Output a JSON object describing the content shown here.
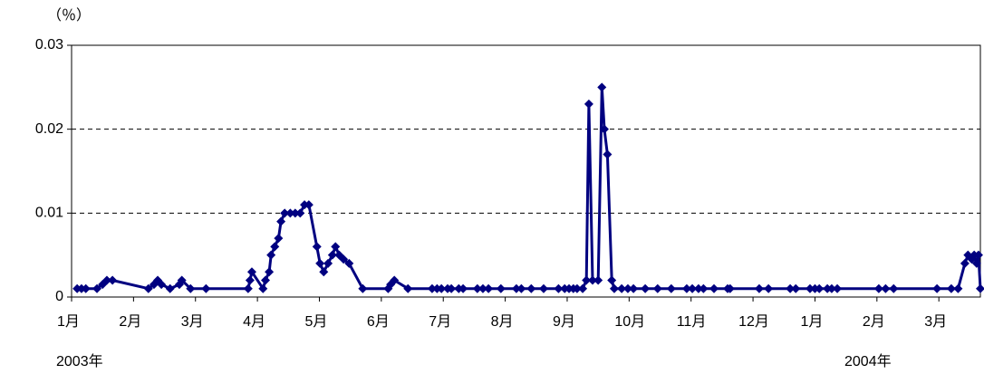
{
  "chart_data": {
    "type": "line",
    "y_label": "（％）",
    "annotations": [
      {
        "text": "2003年"
      },
      {
        "text": "2004年"
      }
    ],
    "x": [
      0.09,
      0.16,
      0.23,
      0.41,
      0.5,
      0.57,
      0.66,
      1.24,
      1.33,
      1.39,
      1.45,
      1.59,
      1.74,
      1.78,
      1.92,
      2.17,
      2.85,
      2.88,
      2.91,
      3.09,
      3.13,
      3.19,
      3.22,
      3.28,
      3.34,
      3.38,
      3.44,
      3.53,
      3.61,
      3.69,
      3.76,
      3.83,
      3.96,
      4.01,
      4.07,
      4.14,
      4.21,
      4.26,
      4.32,
      4.39,
      4.48,
      4.7,
      5.11,
      5.15,
      5.21,
      5.43,
      5.82,
      5.9,
      5.97,
      6.07,
      6.13,
      6.25,
      6.32,
      6.55,
      6.64,
      6.73,
      6.93,
      7.18,
      7.26,
      7.42,
      7.62,
      7.86,
      7.96,
      8.03,
      8.1,
      8.16,
      8.25,
      8.31,
      8.35,
      8.41,
      8.5,
      8.56,
      8.6,
      8.65,
      8.72,
      8.76,
      8.88,
      8.98,
      9.07,
      9.26,
      9.46,
      9.68,
      9.93,
      10.02,
      10.12,
      10.2,
      10.37,
      10.59,
      10.63,
      11.1,
      11.25,
      11.6,
      11.69,
      11.92,
      12.0,
      12.07,
      12.2,
      12.27,
      12.36,
      13.03,
      13.14,
      13.27,
      13.97,
      14.2,
      14.31,
      14.42,
      14.47,
      14.53,
      14.57,
      14.61,
      14.64,
      14.67
    ],
    "series": [
      {
        "color": "#000080",
        "values": [
          0.001,
          0.001,
          0.001,
          0.001,
          0.0015,
          0.002,
          0.002,
          0.001,
          0.0015,
          0.002,
          0.0015,
          0.001,
          0.0015,
          0.002,
          0.001,
          0.001,
          0.001,
          0.002,
          0.003,
          0.001,
          0.002,
          0.003,
          0.005,
          0.006,
          0.007,
          0.009,
          0.01,
          0.01,
          0.01,
          0.01,
          0.011,
          0.011,
          0.006,
          0.004,
          0.003,
          0.004,
          0.005,
          0.006,
          0.005,
          0.0045,
          0.004,
          0.001,
          0.001,
          0.0015,
          0.002,
          0.001,
          0.001,
          0.001,
          0.001,
          0.001,
          0.001,
          0.001,
          0.001,
          0.001,
          0.001,
          0.001,
          0.001,
          0.001,
          0.001,
          0.001,
          0.001,
          0.001,
          0.001,
          0.001,
          0.001,
          0.001,
          0.001,
          0.002,
          0.023,
          0.002,
          0.002,
          0.025,
          0.02,
          0.017,
          0.002,
          0.001,
          0.001,
          0.001,
          0.001,
          0.001,
          0.001,
          0.001,
          0.001,
          0.001,
          0.001,
          0.001,
          0.001,
          0.001,
          0.001,
          0.001,
          0.001,
          0.001,
          0.001,
          0.001,
          0.001,
          0.001,
          0.001,
          0.001,
          0.001,
          0.001,
          0.001,
          0.001,
          0.001,
          0.001,
          0.001,
          0.004,
          0.005,
          0.0045,
          0.005,
          0.004,
          0.005,
          0.001
        ]
      }
    ],
    "xlim": [
      0,
      14.67
    ],
    "xticks": [
      {
        "value": 0,
        "label": "1月"
      },
      {
        "value": 1,
        "label": "2月"
      },
      {
        "value": 2,
        "label": "3月"
      },
      {
        "value": 3,
        "label": "4月"
      },
      {
        "value": 4,
        "label": "5月"
      },
      {
        "value": 5,
        "label": "6月"
      },
      {
        "value": 6,
        "label": "7月"
      },
      {
        "value": 7,
        "label": "8月"
      },
      {
        "value": 8,
        "label": "9月"
      },
      {
        "value": 9,
        "label": "10月"
      },
      {
        "value": 10,
        "label": "11月"
      },
      {
        "value": 11,
        "label": "12月"
      },
      {
        "value": 12,
        "label": "1月"
      },
      {
        "value": 13,
        "label": "2月"
      },
      {
        "value": 14,
        "label": "3月"
      }
    ],
    "ylim": [
      0,
      0.03
    ],
    "yticks": [
      0,
      0.01,
      0.02,
      0.03
    ],
    "grid": true
  }
}
